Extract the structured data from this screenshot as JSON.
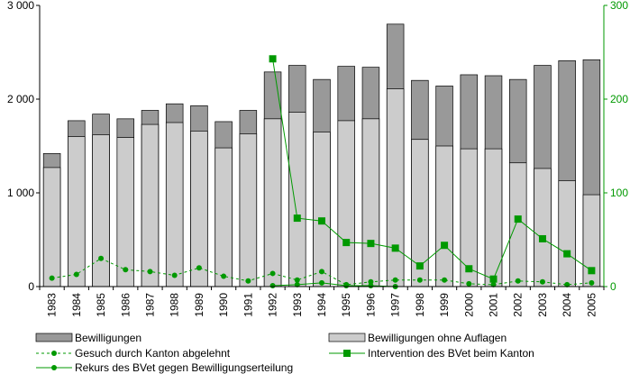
{
  "chart_data": {
    "type": "bar",
    "categories": [
      "1983",
      "1984",
      "1985",
      "1986",
      "1987",
      "1988",
      "1989",
      "1990",
      "1991",
      "1992",
      "1993",
      "1994",
      "1995",
      "1996",
      "1997",
      "1998",
      "1999",
      "2000",
      "2001",
      "2002",
      "2003",
      "2004",
      "2005"
    ],
    "axes": {
      "left": {
        "min": 0,
        "max": 3000,
        "ticks": [
          0,
          1000,
          2000,
          3000
        ],
        "tick_labels": [
          "0",
          "1 000",
          "2 000",
          "3 000"
        ]
      },
      "right": {
        "min": 0,
        "max": 300,
        "ticks": [
          0,
          100,
          200,
          300
        ],
        "tick_labels": [
          "0",
          "100",
          "200",
          "300"
        ]
      }
    },
    "series": [
      {
        "name": "Bewilligungen",
        "kind": "bar",
        "axis": "left",
        "color": "#999999",
        "values": [
          1420,
          1770,
          1840,
          1790,
          1880,
          1950,
          1930,
          1760,
          1880,
          2290,
          2360,
          2210,
          2350,
          2340,
          2800,
          2200,
          2140,
          2260,
          2250,
          2210,
          2360,
          2410,
          2420
        ]
      },
      {
        "name": "Bewilligungen ohne Auflagen",
        "kind": "bar",
        "axis": "left",
        "color": "#cccccc",
        "values": [
          1270,
          1600,
          1620,
          1590,
          1730,
          1750,
          1660,
          1480,
          1630,
          1790,
          1860,
          1650,
          1770,
          1790,
          2110,
          1570,
          1500,
          1470,
          1470,
          1320,
          1260,
          1130,
          980
        ]
      },
      {
        "name": "Gesuch durch Kanton abgelehnt",
        "kind": "line",
        "style": "dashed",
        "marker": "circle",
        "axis": "right",
        "color": "#009900",
        "values": [
          9,
          13,
          30,
          18,
          16,
          12,
          20,
          11,
          6,
          14,
          7,
          16,
          2,
          5,
          7,
          7,
          7,
          3,
          2,
          6,
          5,
          2,
          4
        ]
      },
      {
        "name": "Intervention des BVet beim Kanton",
        "kind": "line",
        "style": "solid",
        "marker": "square",
        "axis": "right",
        "color": "#009900",
        "values": [
          null,
          null,
          null,
          null,
          null,
          null,
          null,
          null,
          null,
          243,
          73,
          70,
          47,
          46,
          41,
          22,
          44,
          19,
          8,
          72,
          51,
          35,
          17
        ]
      },
      {
        "name": "Rekurs des BVet gegen Bewilligungserteilung",
        "kind": "line",
        "style": "solid",
        "marker": "circle",
        "axis": "right",
        "color": "#009900",
        "values": [
          null,
          null,
          null,
          null,
          null,
          null,
          null,
          null,
          null,
          1,
          2,
          4,
          1,
          1,
          0,
          null,
          null,
          null,
          null,
          null,
          null,
          null,
          null
        ]
      }
    ],
    "grid": false
  }
}
